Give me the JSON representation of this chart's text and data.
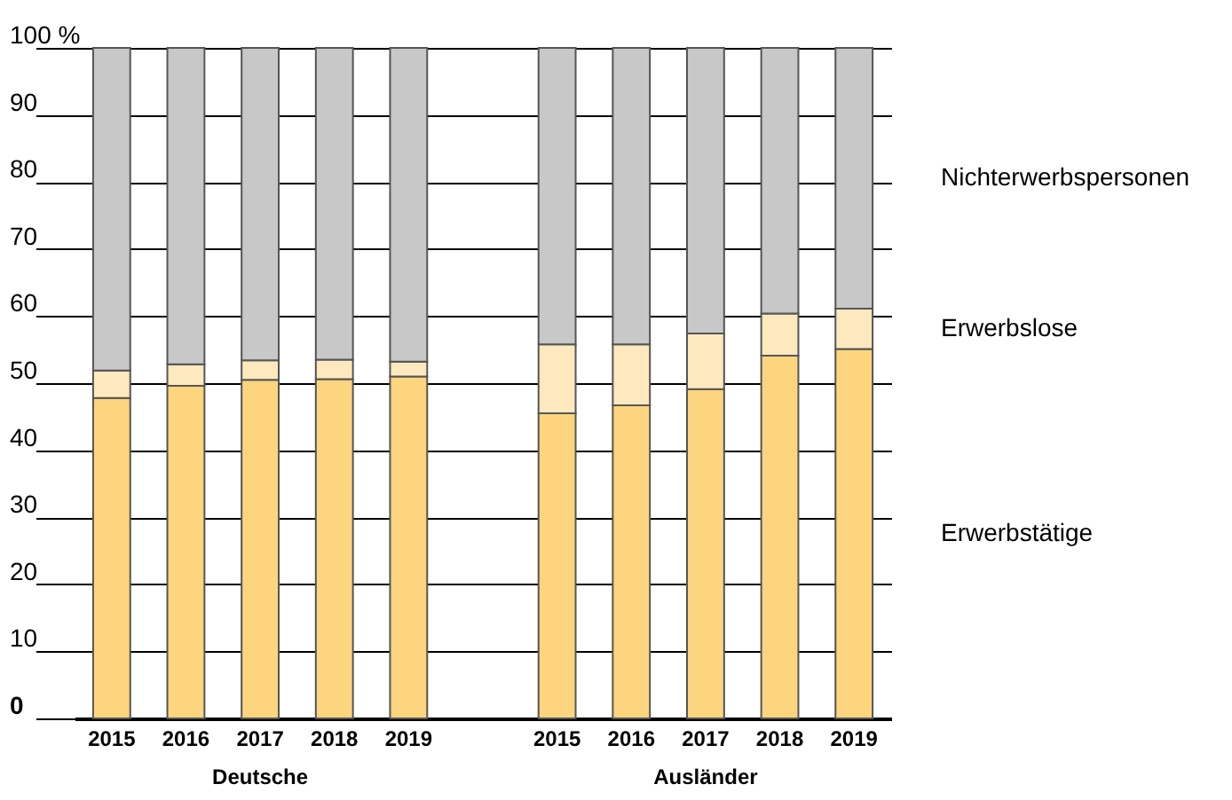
{
  "chart_data": {
    "type": "bar",
    "stacked": true,
    "categories": [
      "2015",
      "2016",
      "2017",
      "2018",
      "2019",
      null,
      "2015",
      "2016",
      "2017",
      "2018",
      "2019"
    ],
    "series": [
      {
        "name": "Erwerbstätige",
        "color": "#fdd57e",
        "values": [
          47.8,
          49.6,
          50.5,
          50.6,
          51.0,
          null,
          45.5,
          46.7,
          49.1,
          54.1,
          55.1
        ]
      },
      {
        "name": "Erwerbslose",
        "color": "#fee9bf",
        "values": [
          4.1,
          3.2,
          2.9,
          2.9,
          2.2,
          null,
          10.3,
          9.1,
          8.3,
          6.3,
          6.0
        ]
      },
      {
        "name": "Nichterwerbspersonen",
        "color": "#c8c8c8",
        "values": [
          48.1,
          47.2,
          46.6,
          46.5,
          46.8,
          null,
          44.2,
          44.2,
          42.6,
          39.6,
          38.9
        ]
      }
    ],
    "ylim": [
      0,
      100
    ],
    "yticks": [
      0,
      10,
      20,
      30,
      40,
      50,
      60,
      70,
      80,
      90,
      {
        "value": 100,
        "label": "100 %"
      }
    ],
    "grid": "y",
    "annotations": [
      "Deutsche",
      "Ausländer"
    ]
  }
}
